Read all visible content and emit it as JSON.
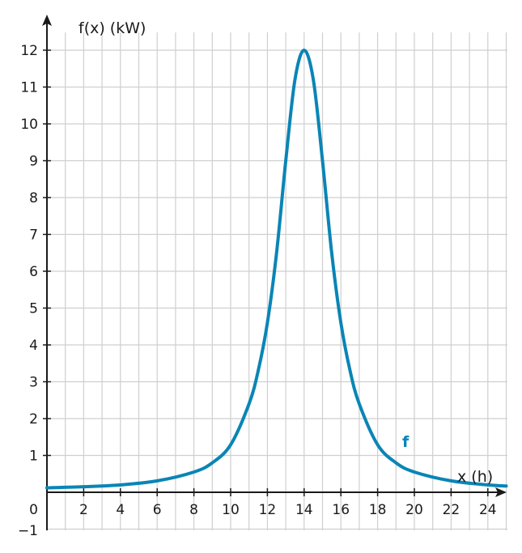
{
  "chart_data": {
    "type": "line",
    "title": "",
    "xlabel": "x (h)",
    "ylabel": "f(x) (kW)",
    "xlim": [
      0,
      25
    ],
    "ylim": [
      -1,
      12.9
    ],
    "grid": true,
    "x_ticks": [
      2,
      4,
      6,
      8,
      10,
      12,
      14,
      16,
      18,
      20,
      22,
      24
    ],
    "y_ticks": [
      1,
      2,
      3,
      4,
      5,
      6,
      7,
      8,
      9,
      10,
      11,
      12
    ],
    "y_tick_labels": [
      "1",
      "2",
      "3",
      "4",
      "5",
      "6",
      "7",
      "8",
      "9",
      "10",
      "11",
      "12"
    ],
    "origin_label": "0",
    "y_min_label": "−1",
    "series": [
      {
        "name": "f",
        "color": "#0a85b5",
        "x": [
          0,
          2,
          4,
          6,
          8,
          9,
          10,
          11,
          11.5,
          12,
          12.5,
          13,
          13.5,
          14,
          14.5,
          15,
          15.5,
          16,
          16.5,
          17,
          18,
          19,
          20,
          22,
          24,
          25
        ],
        "y": [
          0.12,
          0.15,
          0.2,
          0.31,
          0.55,
          0.8,
          1.29,
          2.4,
          3.3,
          4.6,
          6.5,
          9.0,
          11.2,
          12.0,
          11.2,
          9.0,
          6.5,
          4.6,
          3.3,
          2.4,
          1.29,
          0.8,
          0.55,
          0.31,
          0.2,
          0.17
        ]
      }
    ]
  }
}
